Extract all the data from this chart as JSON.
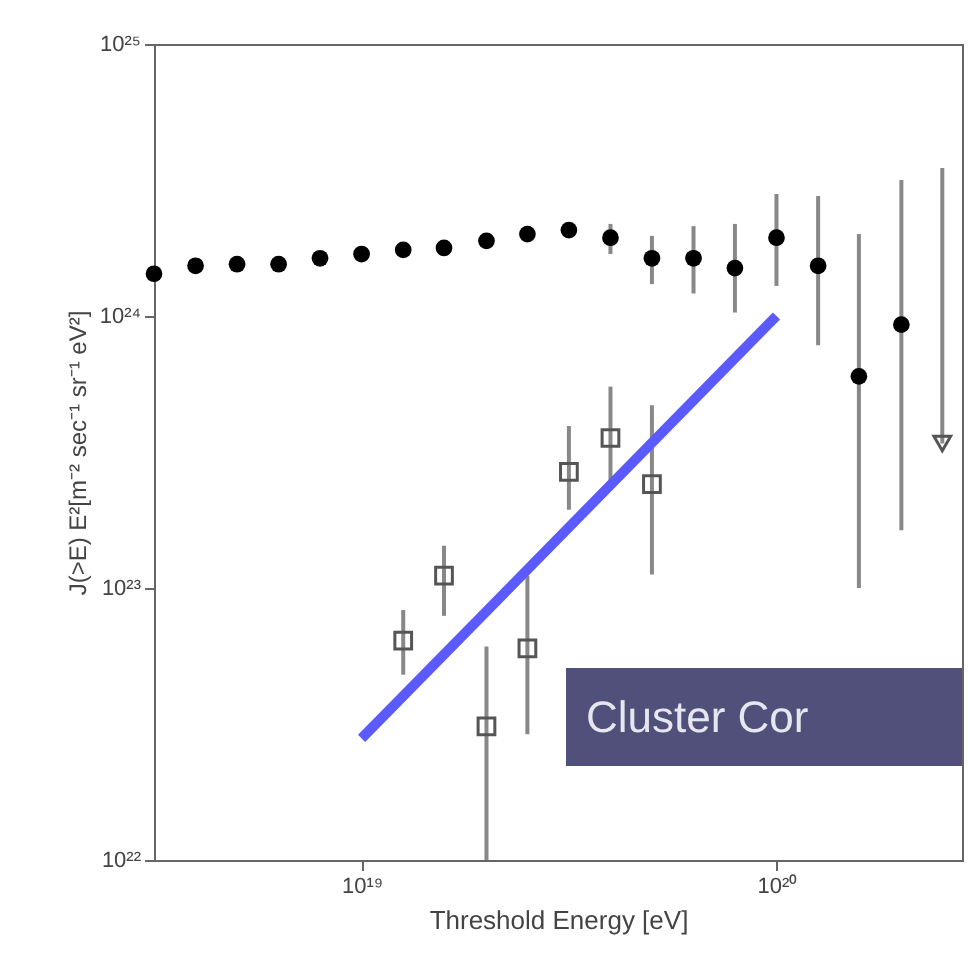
{
  "chart_data": {
    "type": "scatter",
    "xlabel": "Threshold Energy [eV]",
    "ylabel": "J(>E) E²[m⁻² sec⁻¹ sr⁻¹ eV²]",
    "log": "xy",
    "xlim": [
      3.16e+18,
      2.8e+20
    ],
    "xticks": [
      {
        "value": 1e+19,
        "label": "10¹⁹"
      },
      {
        "value": 1e+20,
        "label": "10²⁰"
      }
    ],
    "ylim": [
      1e+22,
      1e+25
    ],
    "yticks": [
      {
        "value": 1e+22,
        "label": "10²²"
      },
      {
        "value": 1e+23,
        "label": "10²³"
      },
      {
        "value": 1e+24,
        "label": "10²⁴"
      },
      {
        "value": 1e+25,
        "label": "10²⁵"
      }
    ],
    "annotations": [
      "Cluster Cor"
    ],
    "series": [
      {
        "marker": "circle",
        "color": "#000000",
        "x": [
          3.16e+18,
          3.98e+18,
          5.01e+18,
          6.31e+18,
          7.94e+18,
          1e+19,
          1.26e+19,
          1.58e+19,
          2e+19,
          2.51e+19,
          3.16e+19,
          3.98e+19,
          5.01e+19,
          6.31e+19,
          7.94e+19,
          1e+20,
          1.26e+20,
          1.58e+20,
          2e+20
        ],
        "values": [
          1.43e+24,
          1.53e+24,
          1.55e+24,
          1.55e+24,
          1.63e+24,
          1.69e+24,
          1.75e+24,
          1.78e+24,
          1.89e+24,
          2e+24,
          2.07e+24,
          1.94e+24,
          1.63e+24,
          1.63e+24,
          1.5e+24,
          1.94e+24,
          1.53e+24,
          6e+23,
          9.3e+23
        ],
        "errors": [
          null,
          null,
          null,
          null,
          null,
          null,
          null,
          null,
          null,
          null,
          null,
          [
            1.69e+24,
            2.18e+24
          ],
          [
            1.31e+24,
            1.97e+24
          ],
          [
            1.21e+24,
            2.14e+24
          ],
          [
            1.03e+24,
            2.18e+24
          ],
          [
            1.29e+24,
            2.81e+24
          ],
          [
            7.8e+23,
            2.76e+24
          ],
          [
            1e+23,
            2e+24
          ],
          [
            1.63e+23,
            3.16e+24
          ]
        ]
      },
      {
        "marker": "triangle",
        "color": "#555555",
        "x": [
          2.51e+20
        ],
        "values": [
          3.4e+23
        ],
        "errors": [
          [
            3.4e+23,
            3.5e+24
          ]
        ]
      },
      {
        "marker": "square",
        "color": "#555555",
        "x": [
          1.26e+19,
          1.58e+19,
          2e+19,
          2.51e+19,
          3.16e+19,
          3.98e+19,
          5.01e+19
        ],
        "values": [
          6.4e+22,
          1.11e+23,
          3.1e+22,
          6e+22,
          2.67e+23,
          3.56e+23,
          2.41e+23
        ],
        "errors": [
          [
            4.8e+22,
            8.3e+22
          ],
          [
            7.9e+22,
            1.43e+23
          ],
          [
            1e+22,
            6.1e+22
          ],
          [
            2.9e+22,
            1.11e+23
          ],
          [
            1.94e+23,
            3.94e+23
          ],
          [
            2.29e+23,
            5.5e+23
          ],
          [
            1.12e+23,
            4.7e+23
          ]
        ]
      },
      {
        "type": "line",
        "color": "#5a5aff",
        "x": [
          1e+19,
          1e+20
        ],
        "values": [
          2.8e+22,
          1e+24
        ]
      }
    ]
  }
}
